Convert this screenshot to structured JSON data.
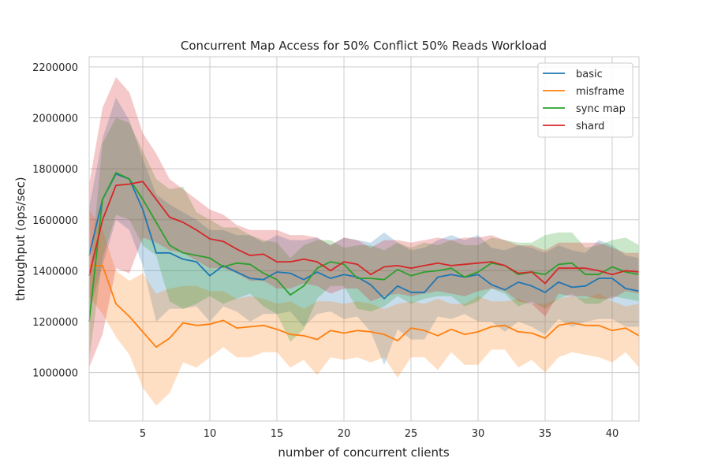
{
  "chart_data": {
    "type": "line",
    "title": "Concurrent Map Access for 50% Conflict 50% Reads Workload",
    "xlabel": "number of concurrent clients",
    "ylabel": "throughput (ops/sec)",
    "xlim": [
      1,
      42
    ],
    "ylim": [
      810000,
      2240000
    ],
    "xticks": [
      5,
      10,
      15,
      20,
      25,
      30,
      35,
      40
    ],
    "yticks": [
      1000000,
      1200000,
      1400000,
      1600000,
      1800000,
      2000000,
      2200000
    ],
    "grid": true,
    "legend_position": "top-right",
    "x": [
      1,
      2,
      3,
      4,
      5,
      6,
      7,
      8,
      9,
      10,
      11,
      12,
      13,
      14,
      15,
      16,
      17,
      18,
      19,
      20,
      21,
      22,
      23,
      24,
      25,
      26,
      27,
      28,
      29,
      30,
      31,
      32,
      33,
      34,
      35,
      36,
      37,
      38,
      39,
      40,
      41,
      42
    ],
    "series": [
      {
        "name": "basic",
        "color": "#1f77b4",
        "values": [
          1460000,
          1680000,
          1780000,
          1760000,
          1640000,
          1470000,
          1470000,
          1445000,
          1435000,
          1380000,
          1420000,
          1395000,
          1370000,
          1365000,
          1395000,
          1390000,
          1365000,
          1395000,
          1370000,
          1385000,
          1375000,
          1345000,
          1290000,
          1340000,
          1315000,
          1315000,
          1375000,
          1385000,
          1375000,
          1385000,
          1345000,
          1325000,
          1355000,
          1340000,
          1315000,
          1355000,
          1335000,
          1340000,
          1370000,
          1370000,
          1330000,
          1320000
        ],
        "lower": [
          1240000,
          1420000,
          1600000,
          1560000,
          1420000,
          1200000,
          1250000,
          1250000,
          1260000,
          1200000,
          1260000,
          1240000,
          1200000,
          1230000,
          1230000,
          1240000,
          1180000,
          1230000,
          1240000,
          1210000,
          1220000,
          1160000,
          1030000,
          1170000,
          1130000,
          1130000,
          1220000,
          1210000,
          1230000,
          1200000,
          1200000,
          1160000,
          1200000,
          1180000,
          1150000,
          1210000,
          1180000,
          1200000,
          1210000,
          1210000,
          1180000,
          1180000
        ],
        "upper": [
          1650000,
          1920000,
          2080000,
          1990000,
          1840000,
          1700000,
          1660000,
          1630000,
          1600000,
          1560000,
          1560000,
          1540000,
          1540000,
          1510000,
          1540000,
          1520000,
          1520000,
          1530000,
          1500000,
          1530000,
          1520000,
          1510000,
          1550000,
          1510000,
          1480000,
          1490000,
          1520000,
          1540000,
          1520000,
          1540000,
          1490000,
          1480000,
          1500000,
          1490000,
          1470000,
          1500000,
          1480000,
          1470000,
          1520000,
          1500000,
          1460000,
          1450000
        ]
      },
      {
        "name": "misframe",
        "color": "#ff7f0e",
        "values": [
          1420000,
          1420000,
          1270000,
          1220000,
          1160000,
          1100000,
          1135000,
          1195000,
          1185000,
          1190000,
          1205000,
          1175000,
          1180000,
          1185000,
          1170000,
          1150000,
          1145000,
          1130000,
          1165000,
          1155000,
          1165000,
          1160000,
          1150000,
          1125000,
          1175000,
          1165000,
          1145000,
          1170000,
          1150000,
          1160000,
          1180000,
          1185000,
          1160000,
          1155000,
          1135000,
          1185000,
          1195000,
          1185000,
          1185000,
          1165000,
          1175000,
          1145000
        ],
        "lower": [
          1300000,
          1230000,
          1140000,
          1070000,
          940000,
          870000,
          920000,
          1040000,
          1020000,
          1060000,
          1100000,
          1060000,
          1060000,
          1080000,
          1080000,
          1020000,
          1050000,
          990000,
          1060000,
          1050000,
          1060000,
          1040000,
          1060000,
          980000,
          1060000,
          1060000,
          1010000,
          1080000,
          1030000,
          1030000,
          1090000,
          1090000,
          1020000,
          1050000,
          1000000,
          1060000,
          1080000,
          1070000,
          1060000,
          1040000,
          1080000,
          1020000
        ],
        "upper": [
          1640000,
          1560000,
          1400000,
          1360000,
          1390000,
          1310000,
          1330000,
          1340000,
          1340000,
          1320000,
          1320000,
          1290000,
          1300000,
          1290000,
          1270000,
          1280000,
          1250000,
          1280000,
          1280000,
          1270000,
          1280000,
          1270000,
          1250000,
          1270000,
          1280000,
          1270000,
          1290000,
          1270000,
          1270000,
          1300000,
          1280000,
          1280000,
          1290000,
          1270000,
          1270000,
          1290000,
          1300000,
          1290000,
          1310000,
          1280000,
          1260000,
          1270000
        ]
      },
      {
        "name": "sync map",
        "color": "#2ca02c",
        "values": [
          1200000,
          1680000,
          1785000,
          1760000,
          1680000,
          1590000,
          1500000,
          1470000,
          1460000,
          1450000,
          1415000,
          1430000,
          1425000,
          1390000,
          1365000,
          1305000,
          1340000,
          1410000,
          1435000,
          1425000,
          1370000,
          1370000,
          1365000,
          1405000,
          1380000,
          1395000,
          1400000,
          1410000,
          1375000,
          1395000,
          1430000,
          1420000,
          1385000,
          1395000,
          1385000,
          1425000,
          1430000,
          1385000,
          1385000,
          1415000,
          1395000,
          1385000
        ],
        "lower": [
          1050000,
          1450000,
          1620000,
          1600000,
          1500000,
          1460000,
          1280000,
          1250000,
          1270000,
          1300000,
          1270000,
          1290000,
          1310000,
          1260000,
          1230000,
          1120000,
          1170000,
          1290000,
          1340000,
          1340000,
          1250000,
          1240000,
          1260000,
          1300000,
          1270000,
          1290000,
          1300000,
          1300000,
          1260000,
          1280000,
          1330000,
          1310000,
          1260000,
          1280000,
          1250000,
          1290000,
          1310000,
          1270000,
          1270000,
          1300000,
          1290000,
          1280000
        ],
        "upper": [
          1350000,
          1900000,
          2000000,
          1980000,
          1870000,
          1760000,
          1720000,
          1730000,
          1630000,
          1600000,
          1570000,
          1570000,
          1540000,
          1520000,
          1510000,
          1450000,
          1500000,
          1520000,
          1520000,
          1490000,
          1500000,
          1500000,
          1480000,
          1510000,
          1490000,
          1510000,
          1500000,
          1520000,
          1500000,
          1500000,
          1530000,
          1520000,
          1510000,
          1510000,
          1540000,
          1550000,
          1550000,
          1490000,
          1500000,
          1520000,
          1530000,
          1500000
        ]
      },
      {
        "name": "shard",
        "color": "#d62728",
        "values": [
          1380000,
          1600000,
          1735000,
          1740000,
          1750000,
          1680000,
          1610000,
          1590000,
          1560000,
          1525000,
          1515000,
          1485000,
          1460000,
          1465000,
          1435000,
          1435000,
          1445000,
          1435000,
          1400000,
          1435000,
          1425000,
          1385000,
          1415000,
          1420000,
          1410000,
          1420000,
          1430000,
          1420000,
          1425000,
          1430000,
          1435000,
          1420000,
          1390000,
          1395000,
          1350000,
          1410000,
          1410000,
          1410000,
          1400000,
          1385000,
          1400000,
          1395000
        ],
        "lower": [
          1020000,
          1150000,
          1410000,
          1390000,
          1530000,
          1510000,
          1480000,
          1470000,
          1440000,
          1410000,
          1410000,
          1390000,
          1360000,
          1360000,
          1330000,
          1330000,
          1350000,
          1340000,
          1310000,
          1330000,
          1330000,
          1280000,
          1300000,
          1310000,
          1300000,
          1310000,
          1320000,
          1310000,
          1300000,
          1320000,
          1330000,
          1320000,
          1280000,
          1270000,
          1220000,
          1310000,
          1300000,
          1300000,
          1290000,
          1290000,
          1320000,
          1310000
        ],
        "upper": [
          1740000,
          2040000,
          2160000,
          2100000,
          1940000,
          1860000,
          1760000,
          1720000,
          1680000,
          1640000,
          1620000,
          1580000,
          1560000,
          1560000,
          1560000,
          1540000,
          1540000,
          1530000,
          1500000,
          1530000,
          1520000,
          1490000,
          1520000,
          1520000,
          1510000,
          1520000,
          1530000,
          1520000,
          1530000,
          1530000,
          1540000,
          1520000,
          1500000,
          1500000,
          1480000,
          1510000,
          1510000,
          1510000,
          1510000,
          1490000,
          1470000,
          1470000
        ]
      }
    ]
  }
}
